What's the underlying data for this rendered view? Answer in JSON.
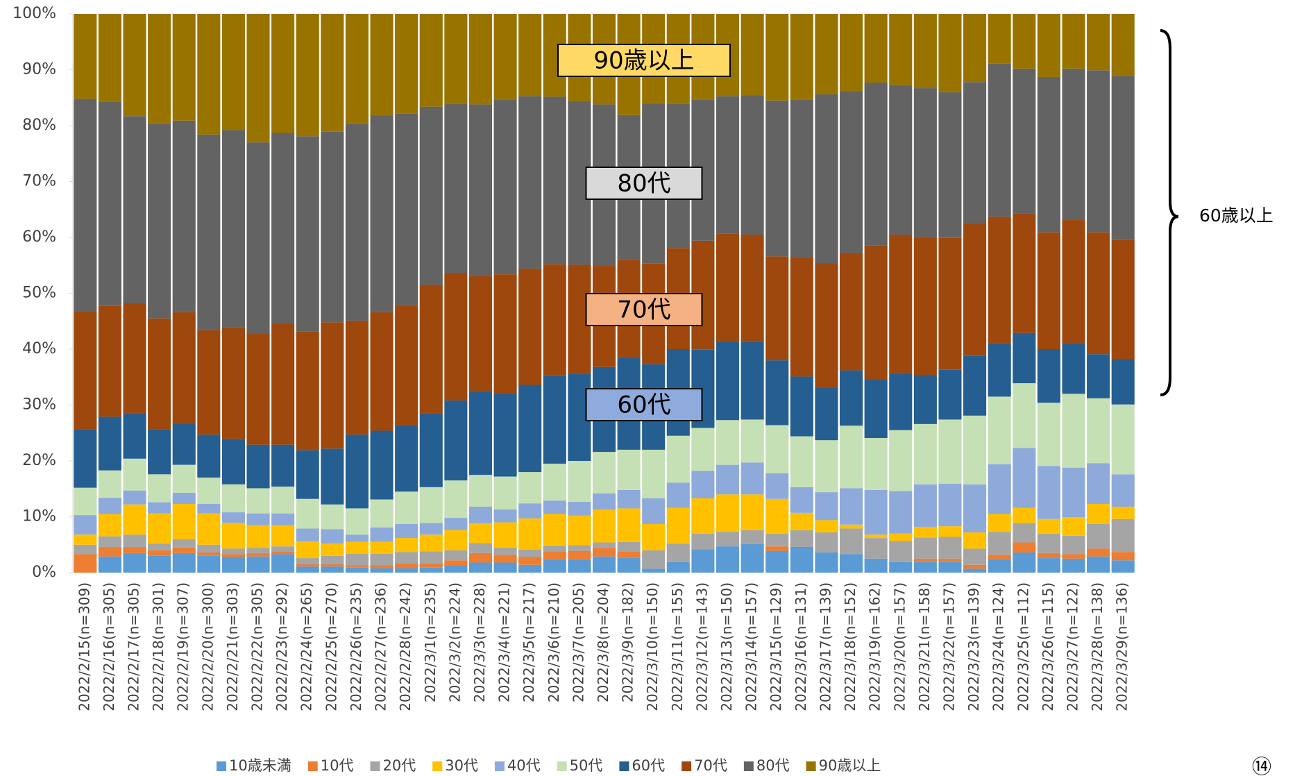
{
  "chart_data": {
    "type": "stacked_bar_100",
    "categories": [
      "2022/2/15(n=309)",
      "2022/2/16(n=305)",
      "2022/2/17(n=305)",
      "2022/2/18(n=301)",
      "2022/2/19(n=307)",
      "2022/2/20(n=300)",
      "2022/2/21(n=303)",
      "2022/2/22(n=305)",
      "2022/2/23(n=292)",
      "2022/2/24(n=265)",
      "2022/2/25(n=270)",
      "2022/2/26(n=235)",
      "2022/2/27(n=236)",
      "2022/2/28(n=242)",
      "2022/3/1(n=235)",
      "2022/3/2(n=224)",
      "2022/3/3(n=228)",
      "2022/3/4(n=221)",
      "2022/3/5(n=217)",
      "2022/3/6(n=210)",
      "2022/3/7(n=205)",
      "2022/3/8(n=204)",
      "2022/3/9(n=182)",
      "2022/3/10(n=150)",
      "2022/3/11(n=155)",
      "2022/3/12(n=143)",
      "2022/3/13(n=150)",
      "2022/3/14(n=157)",
      "2022/3/15(n=129)",
      "2022/3/16(n=131)",
      "2022/3/17(n=139)",
      "2022/3/18(n=152)",
      "2022/3/19(n=162)",
      "2022/3/20(n=157)",
      "2022/3/21(n=158)",
      "2022/3/22(n=157)",
      "2022/3/23(n=139)",
      "2022/3/24(n=124)",
      "2022/3/25(n=112)",
      "2022/3/26(n=115)",
      "2022/3/27(n=122)",
      "2022/3/28(n=138)",
      "2022/3/29(n=136)"
    ],
    "series": [
      {
        "name": "10歳未満",
        "color": "#5b9bd5",
        "values": [
          0,
          2.9,
          3.5,
          3.0,
          3.5,
          3.0,
          2.8,
          2.9,
          3.3,
          1.1,
          1.1,
          0.9,
          0.8,
          0.8,
          0.9,
          1.3,
          1.8,
          1.8,
          1.4,
          2.4,
          2.4,
          2.9,
          2.7,
          0.7,
          1.9,
          4.2,
          4.7,
          5.1,
          3.9,
          4.6,
          3.6,
          3.3,
          2.5,
          1.9,
          1.9,
          1.9,
          0.7,
          2.4,
          3.6,
          2.6,
          2.5,
          2.9,
          2.2
        ]
      },
      {
        "name": "10代",
        "color": "#ed7d31",
        "values": [
          3.3,
          1.7,
          1.1,
          1.0,
          1.0,
          0.6,
          0.5,
          0.6,
          0.5,
          0.4,
          0.4,
          0.4,
          0.5,
          0.9,
          0.8,
          0.9,
          1.7,
          1.4,
          1.4,
          1.4,
          1.5,
          1.5,
          1.1,
          0,
          0,
          0,
          0,
          0,
          0.8,
          0,
          0,
          0,
          0,
          0,
          0.6,
          0.6,
          0.7,
          0.8,
          1.8,
          0.9,
          0.8,
          1.4,
          1.5
        ]
      },
      {
        "name": "20代",
        "color": "#a5a5a5",
        "values": [
          1.7,
          1.9,
          2.2,
          1.2,
          1.5,
          1.4,
          1.0,
          0.9,
          0.9,
          1.1,
          1.5,
          2.1,
          2.1,
          2.0,
          2.1,
          1.8,
          1.8,
          1.3,
          1.3,
          1.0,
          1.0,
          1.0,
          1.7,
          3.3,
          3.3,
          2.8,
          2.6,
          2.5,
          2.3,
          3.0,
          3.6,
          4.6,
          3.7,
          3.8,
          3.8,
          3.9,
          2.9,
          4.1,
          3.5,
          3.5,
          3.3,
          4.4,
          5.9
        ]
      },
      {
        "name": "30代",
        "color": "#ffc000",
        "values": [
          1.8,
          4.0,
          5.4,
          5.4,
          6.3,
          5.6,
          4.6,
          4.1,
          3.8,
          3.0,
          2.2,
          2.1,
          2.1,
          2.5,
          3.0,
          3.6,
          3.5,
          4.5,
          5.6,
          5.7,
          5.3,
          5.9,
          6.0,
          4.7,
          6.4,
          6.3,
          6.7,
          6.4,
          6.2,
          3.1,
          2.2,
          0.7,
          0.6,
          1.3,
          1.9,
          1.9,
          2.9,
          3.2,
          2.7,
          2.6,
          3.3,
          3.6,
          2.2
        ]
      },
      {
        "name": "40代",
        "color": "#8eaadb",
        "values": [
          3.5,
          2.9,
          2.5,
          2.0,
          2.0,
          1.7,
          1.9,
          2.1,
          2.1,
          2.3,
          2.6,
          1.3,
          2.6,
          2.5,
          2.1,
          2.2,
          3.0,
          2.3,
          2.7,
          2.4,
          2.5,
          2.9,
          3.3,
          4.6,
          4.5,
          4.9,
          5.3,
          5.7,
          4.6,
          4.6,
          5.0,
          6.5,
          8.0,
          7.6,
          7.6,
          7.6,
          8.6,
          8.9,
          10.7,
          9.5,
          8.9,
          7.3,
          5.8
        ]
      },
      {
        "name": "50代",
        "color": "#c5e0b4",
        "values": [
          4.9,
          4.9,
          5.7,
          5.0,
          5.0,
          4.7,
          5.0,
          4.5,
          4.8,
          5.3,
          4.4,
          4.7,
          5.0,
          5.8,
          6.4,
          6.7,
          5.7,
          5.9,
          5.6,
          6.6,
          7.3,
          7.4,
          7.2,
          8.7,
          8.4,
          7.7,
          8.0,
          7.7,
          8.6,
          9.1,
          9.3,
          11.2,
          9.3,
          10.9,
          10.8,
          11.5,
          12.3,
          12.1,
          11.6,
          11.3,
          13.2,
          11.6,
          12.5
        ]
      },
      {
        "name": "60代",
        "color": "#255e91",
        "values": [
          10.4,
          9.6,
          8.1,
          8.0,
          7.4,
          7.7,
          8.1,
          7.8,
          7.5,
          8.7,
          10.0,
          13.2,
          12.3,
          11.9,
          13.2,
          14.3,
          15.0,
          14.9,
          15.6,
          15.7,
          15.6,
          15.2,
          16.5,
          15.3,
          15.5,
          14.0,
          14.0,
          14.0,
          11.6,
          10.7,
          9.4,
          9.9,
          10.5,
          10.2,
          8.8,
          8.9,
          10.7,
          9.6,
          9.0,
          9.6,
          9.0,
          7.9,
          8.1
        ]
      },
      {
        "name": "70代",
        "color": "#9e480e",
        "values": [
          21.1,
          19.9,
          19.7,
          19.9,
          19.9,
          18.7,
          20.0,
          19.9,
          21.7,
          21.3,
          22.6,
          20.4,
          21.2,
          21.5,
          23.0,
          22.8,
          20.6,
          21.3,
          20.8,
          20.0,
          19.5,
          18.1,
          17.5,
          18.0,
          18.1,
          19.5,
          19.4,
          19.1,
          18.6,
          21.4,
          22.3,
          21.0,
          24.0,
          24.8,
          24.7,
          23.6,
          23.8,
          22.6,
          21.4,
          20.9,
          22.1,
          21.8,
          21.4
        ]
      },
      {
        "name": "80代",
        "color": "#636363",
        "values": [
          38.1,
          36.5,
          33.5,
          34.9,
          34.3,
          35.0,
          35.3,
          34.2,
          34.1,
          34.9,
          34.1,
          35.3,
          35.2,
          34.3,
          31.9,
          30.3,
          30.7,
          31.2,
          30.9,
          30.0,
          29.3,
          28.9,
          25.9,
          28.7,
          25.8,
          25.2,
          24.6,
          24.9,
          27.9,
          28.2,
          30.2,
          29.0,
          29.1,
          26.8,
          26.6,
          26.1,
          25.2,
          27.4,
          25.9,
          27.8,
          27.1,
          29.0,
          29.3
        ]
      },
      {
        "name": "90歳以上",
        "color": "#997300",
        "values": [
          15.2,
          15.7,
          18.3,
          19.6,
          19.1,
          21.6,
          20.8,
          23.0,
          21.3,
          21.9,
          21.1,
          19.6,
          18.2,
          17.8,
          16.6,
          16.1,
          16.2,
          15.4,
          14.7,
          14.8,
          15.6,
          16.2,
          18.1,
          16.0,
          16.1,
          15.4,
          14.7,
          14.6,
          15.5,
          15.3,
          14.4,
          13.8,
          12.3,
          12.7,
          13.3,
          14.0,
          12.2,
          8.9,
          9.8,
          11.3,
          9.8,
          10.1,
          11.1
        ]
      }
    ],
    "ylim": [
      0,
      100
    ],
    "yticks": [
      {
        "value": 0,
        "label": "0%"
      },
      {
        "value": 10,
        "label": "10%"
      },
      {
        "value": 20,
        "label": "20%"
      },
      {
        "value": 30,
        "label": "30%"
      },
      {
        "value": 40,
        "label": "40%"
      },
      {
        "value": 50,
        "label": "50%"
      },
      {
        "value": 60,
        "label": "60%"
      },
      {
        "value": 70,
        "label": "70%"
      },
      {
        "value": 80,
        "label": "80%"
      },
      {
        "value": 90,
        "label": "90%"
      },
      {
        "value": 100,
        "label": "100%"
      }
    ],
    "grid": false,
    "legend": "bottom",
    "annotations": [
      {
        "text": "90歳以上",
        "color": "#ffd966"
      },
      {
        "text": "80代",
        "color": "#d9d9d9"
      },
      {
        "text": "70代",
        "color": "#f4b183"
      },
      {
        "text": "60代",
        "color": "#8faadc"
      }
    ],
    "bracket_label": "60歳以上",
    "page_label": "⑭"
  }
}
